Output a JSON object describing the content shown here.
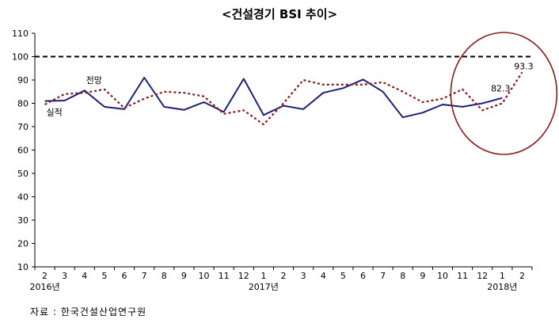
{
  "chart_data": {
    "type": "line",
    "title": "<건설경기 BSI 추이>",
    "x": [
      "2",
      "3",
      "4",
      "5",
      "6",
      "7",
      "8",
      "9",
      "10",
      "11",
      "12",
      "1",
      "2",
      "3",
      "4",
      "5",
      "6",
      "7",
      "8",
      "9",
      "10",
      "11",
      "12",
      "1",
      "2"
    ],
    "year_labels": [
      {
        "index": 0,
        "text": "2016년"
      },
      {
        "index": 11,
        "text": "2017년"
      },
      {
        "index": 23,
        "text": "2018년"
      }
    ],
    "ylim": [
      10,
      110
    ],
    "yticks": [
      10,
      20,
      30,
      40,
      50,
      60,
      70,
      80,
      90,
      100,
      110
    ],
    "reference_line": 100,
    "series": [
      {
        "name": "실적",
        "style": "solid",
        "color": "#1f1f7a",
        "values": [
          81.0,
          81.2,
          85.5,
          78.5,
          77.5,
          91.0,
          78.5,
          77.2,
          80.5,
          76.3,
          90.5,
          75.0,
          79.0,
          77.5,
          84.5,
          86.5,
          90.2,
          85.0,
          74.0,
          76.0,
          79.5,
          78.5,
          80.0,
          82.3,
          null
        ]
      },
      {
        "name": "전망",
        "style": "dotted",
        "color": "#8b1a1a",
        "values": [
          79.5,
          84.0,
          84.5,
          86.0,
          78.0,
          82.0,
          85.0,
          84.5,
          83.0,
          75.5,
          77.0,
          71.0,
          80.0,
          90.0,
          88.0,
          88.0,
          88.0,
          89.0,
          85.0,
          80.5,
          82.0,
          86.0,
          77.0,
          80.0,
          93.3
        ]
      }
    ],
    "annotations": [
      "82.3",
      "93.3"
    ],
    "highlight_circle": {
      "color": "#8b1a1a"
    },
    "grid": false,
    "legend": "inline"
  },
  "source_text": "자료 : 한국건설산업연구원"
}
